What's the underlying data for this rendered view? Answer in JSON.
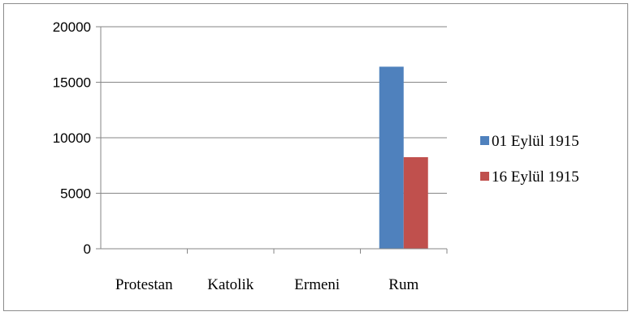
{
  "chart_data": {
    "type": "bar",
    "title": "",
    "xlabel": "",
    "ylabel": "",
    "categories": [
      "Protestan",
      "Katolik",
      "Ermeni",
      "Rum"
    ],
    "series": [
      {
        "name": "01 Eylül 1915",
        "color": "#4f81bd",
        "values": [
          0,
          0,
          30,
          16400
        ]
      },
      {
        "name": "16 Eylül 1915",
        "color": "#c0504d",
        "values": [
          0,
          0,
          15,
          8250
        ]
      }
    ],
    "ylim": [
      0,
      20000
    ],
    "yticks": [
      0,
      5000,
      10000,
      15000,
      20000
    ],
    "grid": true,
    "legend_position": "right"
  }
}
